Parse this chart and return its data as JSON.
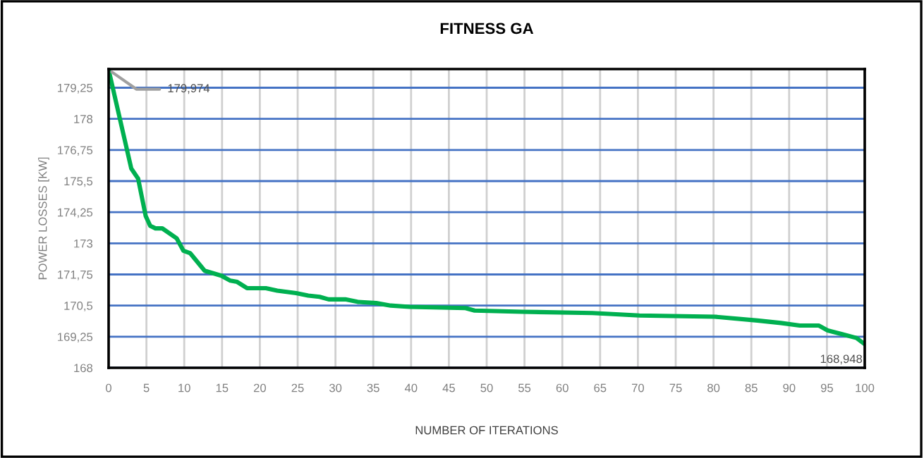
{
  "chart_data": {
    "type": "line",
    "title": "FITNESS GA",
    "xlabel": "NUMBER OF ITERATIONS",
    "ylabel": "POWER LOSSES [KW]",
    "series": [
      {
        "color": "#00b050",
        "x": [
          0,
          3.0,
          3.9,
          4.9,
          5.5,
          6.2,
          7.1,
          9,
          9.9,
          10.8,
          12.7,
          14.9,
          16.1,
          17,
          18.3,
          20.8,
          22.3,
          24.8,
          26.4,
          27.9,
          29.1,
          31.3,
          32.9,
          35.4,
          37.3,
          39.8,
          47.2,
          48.4,
          54.7,
          64,
          70.2,
          80.2,
          85.8,
          88.9,
          91.4,
          93.9,
          95.1,
          97,
          98.9,
          100
        ],
        "values": [
          179.974,
          176.0,
          175.6,
          174.1,
          173.7,
          173.6,
          173.6,
          173.2,
          172.7,
          172.6,
          171.9,
          171.7,
          171.5,
          171.45,
          171.2,
          171.2,
          171.1,
          171.0,
          170.9,
          170.85,
          170.75,
          170.75,
          170.65,
          170.6,
          170.5,
          170.45,
          170.4,
          170.3,
          170.25,
          170.2,
          170.1,
          170.05,
          169.9,
          169.8,
          169.7,
          169.7,
          169.5,
          169.35,
          169.2,
          168.948
        ]
      }
    ],
    "annotations": [
      {
        "text": "179,974",
        "x": 0,
        "y": 179.974
      },
      {
        "text": "168,948",
        "x": 100,
        "y": 168.948
      }
    ],
    "xlim": [
      0,
      100
    ],
    "xticks": [
      0,
      5,
      10,
      15,
      20,
      25,
      30,
      35,
      40,
      45,
      50,
      55,
      60,
      65,
      70,
      75,
      80,
      85,
      90,
      95,
      100
    ],
    "ylim": [
      168,
      180
    ],
    "yticks": [
      168,
      {
        "value": 169.25,
        "label": "169,25"
      },
      {
        "value": 170.5,
        "label": "170,5"
      },
      {
        "value": 171.75,
        "label": "171,75"
      },
      173,
      {
        "value": 174.25,
        "label": "174,25"
      },
      {
        "value": 175.5,
        "label": "175,5"
      },
      {
        "value": 176.75,
        "label": "176,75"
      },
      178,
      {
        "value": 179.25,
        "label": "179,25"
      }
    ],
    "grid": true,
    "legend": false,
    "marker": "none",
    "line_style": "solid"
  }
}
